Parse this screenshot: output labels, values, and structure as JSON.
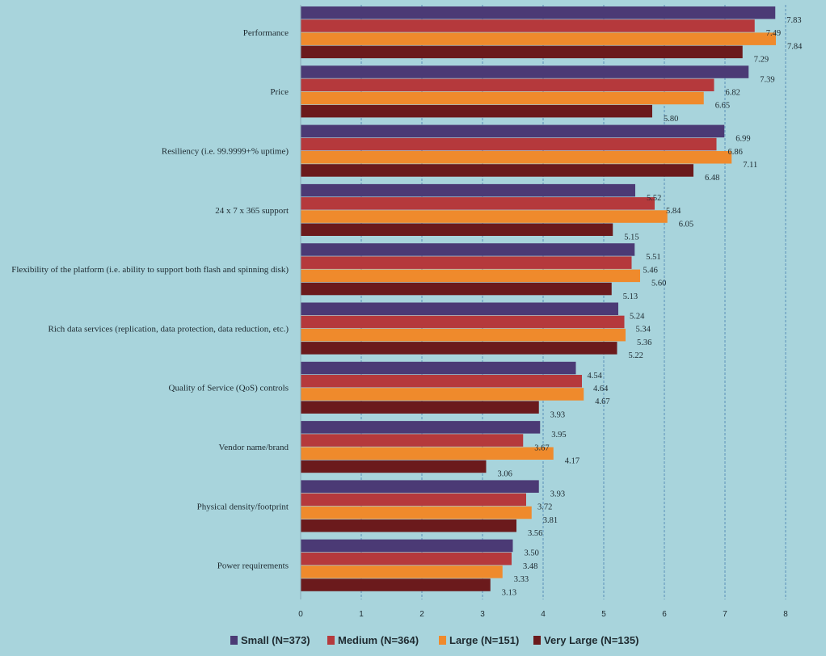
{
  "chart_data": {
    "type": "bar",
    "orientation": "horizontal",
    "categories": [
      "Performance",
      "Price",
      "Resiliency (i.e. 99.9999+% uptime)",
      "24 x 7 x 365 support",
      "Flexibility of the platform (i.e. ability to support both flash and spinning disk)",
      "Rich data services (replication, data protection, data reduction, etc.)",
      "Quality of Service (QoS) controls",
      "Vendor name/brand",
      "Physical density/footprint",
      "Power requirements"
    ],
    "series": [
      {
        "name": "Small (N=373)",
        "color": "#4b3a75",
        "values": [
          7.83,
          7.39,
          6.99,
          5.52,
          5.51,
          5.24,
          4.54,
          3.95,
          3.93,
          3.5
        ],
        "labels": [
          "7.83",
          "7.39",
          "6.99",
          "5.52",
          "5.51",
          "5.24",
          "4.54",
          "3.95",
          "3.93",
          "3.50"
        ]
      },
      {
        "name": "Medium (N=364)",
        "color": "#b5393c",
        "values": [
          7.49,
          6.82,
          6.86,
          5.84,
          5.46,
          5.34,
          4.64,
          3.67,
          3.72,
          3.48
        ],
        "labels": [
          "7.49",
          "6.82",
          "6.86",
          "5.84",
          "5.46",
          "5.34",
          "4.64",
          "3.67",
          "3.72",
          "3.48"
        ]
      },
      {
        "name": "Large (N=151)",
        "color": "#ef8a2c",
        "values": [
          7.84,
          6.65,
          7.11,
          6.05,
          5.6,
          5.36,
          4.67,
          4.17,
          3.81,
          3.33
        ],
        "labels": [
          "7.84",
          "6.65",
          "7.11",
          "6.05",
          "5.60",
          "5.36",
          "4.67",
          "4.17",
          "3.81",
          "3.33"
        ]
      },
      {
        "name": "Very Large (N=135)",
        "color": "#6b1a1c",
        "values": [
          7.29,
          5.8,
          6.48,
          5.15,
          5.13,
          5.22,
          3.93,
          3.06,
          3.56,
          3.13
        ],
        "labels": [
          "7.29",
          "5.80",
          "6.48",
          "5.15",
          "5.13",
          "5.22",
          "3.93",
          "3.06",
          "3.56",
          "3.13"
        ]
      }
    ],
    "ticks": [
      "0",
      "1",
      "2",
      "3",
      "4",
      "5",
      "6",
      "7",
      "8"
    ],
    "xlim": [
      0,
      8
    ],
    "grid": "vertical dashed",
    "legend_position": "bottom",
    "title": "",
    "xlabel": "",
    "ylabel": ""
  }
}
